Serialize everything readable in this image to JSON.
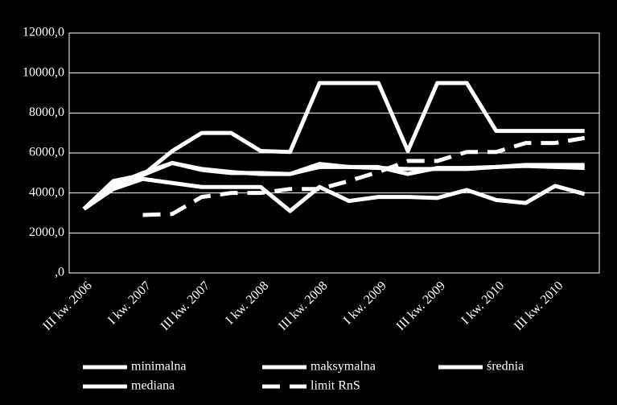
{
  "chart_data": {
    "type": "line",
    "categories": [
      "III kw. 2006",
      null,
      "I kw. 2007",
      null,
      "III kw. 2007",
      null,
      "I kw. 2008",
      null,
      "III kw. 2008",
      null,
      "I kw. 2009",
      null,
      "III kw. 2009",
      null,
      "I kw. 2010",
      null,
      "III kw. 2010",
      null
    ],
    "series": [
      {
        "name": "minimalna",
        "color": "#ffffff",
        "style": "solid",
        "values": [
          3200,
          4200,
          4700,
          4500,
          4300,
          4300,
          4300,
          3100,
          4300,
          3600,
          3800,
          3800,
          3750,
          4150,
          3650,
          3500,
          4350,
          3950
        ]
      },
      {
        "name": "maksymalna",
        "color": "#ffffff",
        "style": "solid",
        "values": [
          3200,
          4600,
          4900,
          6100,
          7000,
          7000,
          6100,
          6050,
          9500,
          9500,
          9500,
          6100,
          9500,
          9500,
          7100,
          7100,
          7100,
          7100
        ]
      },
      {
        "name": "średnia",
        "color": "#ffffff",
        "style": "solid",
        "values": [
          3200,
          4400,
          5000,
          5500,
          5150,
          5000,
          5000,
          4950,
          5450,
          5300,
          5300,
          4950,
          5250,
          5250,
          5300,
          5400,
          5400,
          5400
        ]
      },
      {
        "name": "mediana",
        "color": "#ffffff",
        "style": "solid",
        "values": [
          3200,
          4400,
          4900,
          5500,
          5200,
          5050,
          4950,
          4950,
          5300,
          5300,
          5250,
          5200,
          5200,
          5200,
          5300,
          5350,
          5300,
          5250
        ]
      },
      {
        "name": "limit RnS",
        "color": "#ffffff",
        "style": "dashed",
        "values": [
          null,
          null,
          2900,
          2950,
          3800,
          4000,
          4000,
          4200,
          4200,
          4600,
          5050,
          5600,
          5600,
          6050,
          6050,
          6500,
          6500,
          6750
        ]
      }
    ],
    "ylim": [
      0,
      12000
    ],
    "yticks": [
      {
        "value": 0,
        "label": ",0"
      },
      {
        "value": 2000,
        "label": "2000,0"
      },
      {
        "value": 4000,
        "label": "4000,0"
      },
      {
        "value": 6000,
        "label": "6000,0"
      },
      {
        "value": 8000,
        "label": "8000,0"
      },
      {
        "value": 10000,
        "label": "10000,0"
      },
      {
        "value": 12000,
        "label": "12000,0"
      }
    ],
    "grid": true,
    "legend": "bottom"
  }
}
